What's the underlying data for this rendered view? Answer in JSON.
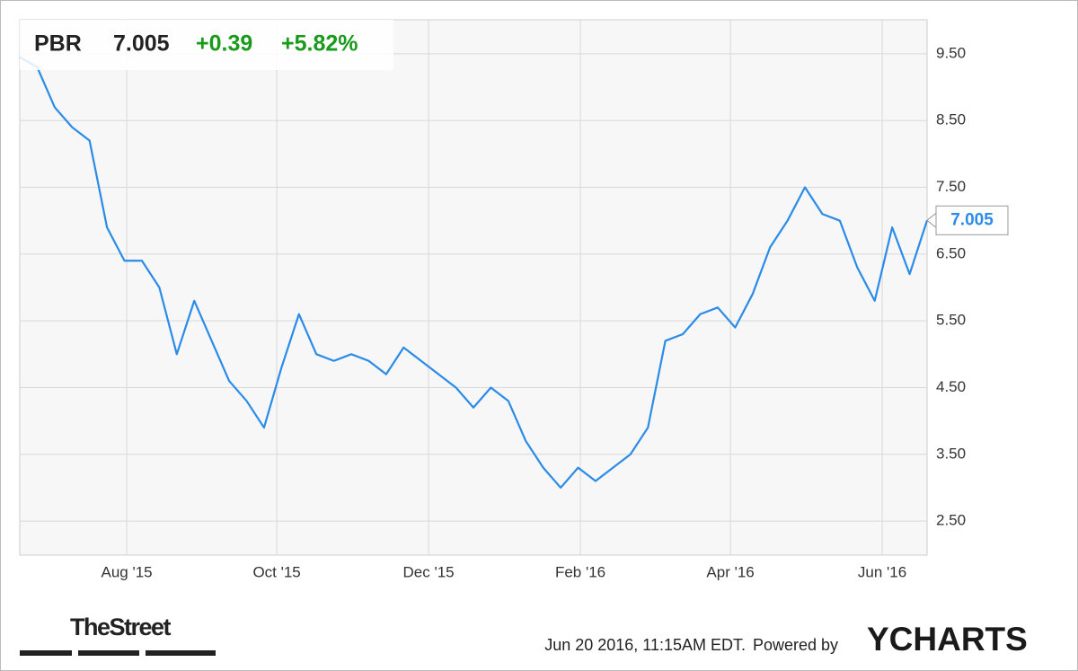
{
  "chart_data": {
    "type": "line",
    "symbol": "PBR",
    "price": "7.005",
    "change": "+0.39",
    "change_pct": "+5.82%",
    "series": [
      {
        "name": "PBR",
        "color": "#2a8be8",
        "values": [
          9.45,
          9.3,
          8.7,
          8.4,
          8.2,
          6.9,
          6.4,
          6.4,
          6.0,
          5.0,
          5.8,
          5.2,
          4.6,
          4.3,
          3.9,
          4.8,
          5.6,
          5.0,
          4.9,
          5.0,
          4.9,
          4.7,
          5.1,
          4.9,
          4.7,
          4.5,
          4.2,
          4.5,
          4.3,
          3.7,
          3.3,
          3.0,
          3.3,
          3.1,
          3.3,
          3.5,
          3.9,
          5.2,
          5.3,
          5.6,
          5.7,
          5.4,
          5.9,
          6.6,
          7.0,
          7.5,
          7.1,
          7.0,
          6.3,
          5.8,
          6.9,
          6.2,
          7.005
        ]
      }
    ],
    "xlim": [
      0,
      52
    ],
    "xticks": [
      {
        "value": 6.13,
        "label": "Aug '15"
      },
      {
        "value": 14.73,
        "label": "Oct '15"
      },
      {
        "value": 23.43,
        "label": "Dec '15"
      },
      {
        "value": 32.13,
        "label": "Feb '16"
      },
      {
        "value": 40.73,
        "label": "Apr '16"
      },
      {
        "value": 49.43,
        "label": "Jun '16"
      }
    ],
    "ylim": [
      1.99,
      10.01
    ],
    "yticks": [
      {
        "value": 2.5,
        "label": "2.50"
      },
      {
        "value": 3.5,
        "label": "3.50"
      },
      {
        "value": 4.5,
        "label": "4.50"
      },
      {
        "value": 5.5,
        "label": "5.50"
      },
      {
        "value": 6.5,
        "label": "6.50"
      },
      {
        "value": 7.5,
        "label": "7.50"
      },
      {
        "value": 8.5,
        "label": "8.50"
      },
      {
        "value": 9.5,
        "label": "9.50"
      }
    ],
    "grid": true,
    "timestamp": "Jun 20 2016, 11:15AM EDT.",
    "powered_by": "Powered by",
    "brand": "YCHARTS",
    "source": "TheStreet"
  }
}
